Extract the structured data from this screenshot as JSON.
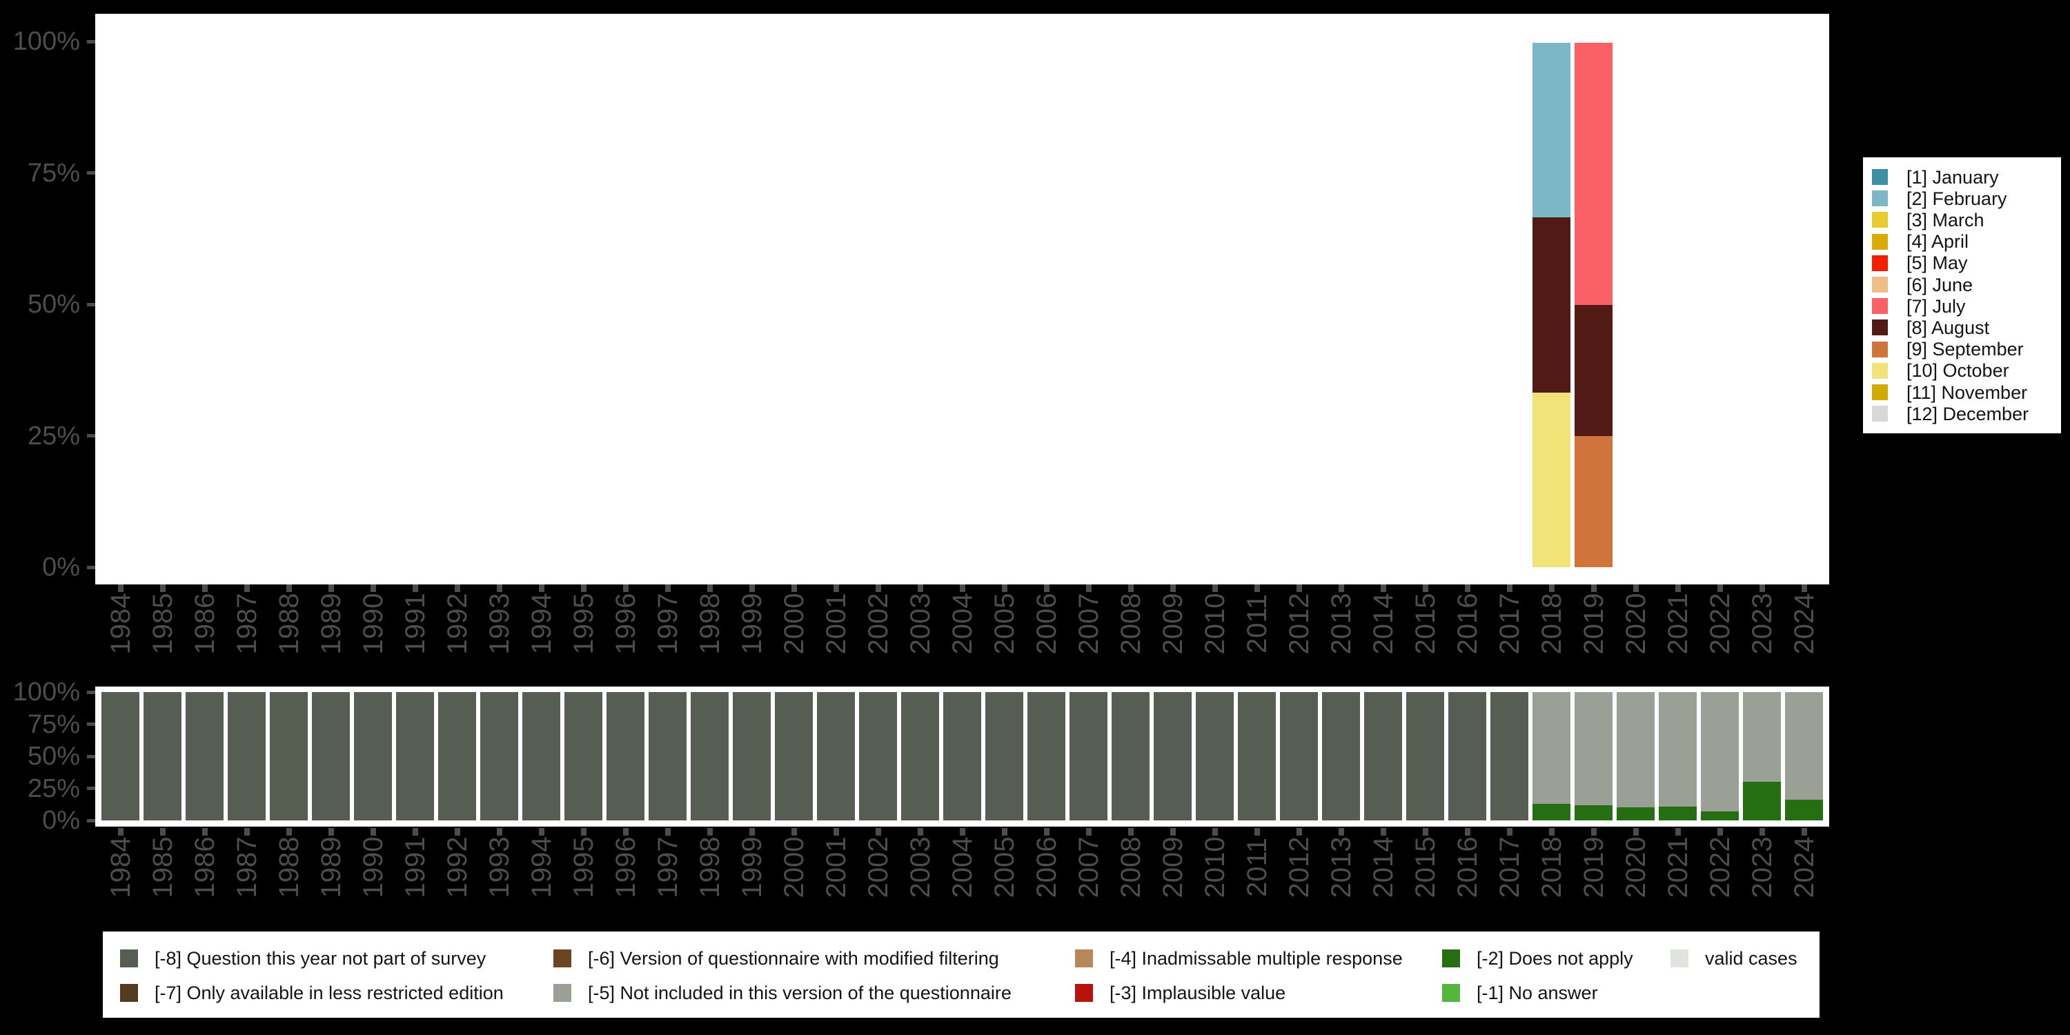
{
  "colors": {
    "background": "#000000",
    "plot_background": "#ffffff",
    "axis_text": "#4d4d4d",
    "tick": "#4d4d4d",
    "legend_text": "#141414"
  },
  "chart_data": [
    {
      "id": "months",
      "type": "bar",
      "stacked": true,
      "title": "",
      "xlabel": "",
      "ylabel": "",
      "ylim": [
        0,
        100
      ],
      "grid": false,
      "legend_position": "right",
      "y_ticks": [
        "100%",
        "75%",
        "50%",
        "25%",
        "0%"
      ],
      "categories": [
        "1984",
        "1985",
        "1986",
        "1987",
        "1988",
        "1989",
        "1990",
        "1991",
        "1992",
        "1993",
        "1994",
        "1995",
        "1996",
        "1997",
        "1998",
        "1999",
        "2000",
        "2001",
        "2002",
        "2003",
        "2004",
        "2005",
        "2006",
        "2007",
        "2008",
        "2009",
        "2010",
        "2011",
        "2012",
        "2013",
        "2014",
        "2015",
        "2016",
        "2017",
        "2018",
        "2019",
        "2020",
        "2021",
        "2022",
        "2023",
        "2024"
      ],
      "legend": [
        {
          "label": "[1] January",
          "color": "#3b90a5"
        },
        {
          "label": "[2] February",
          "color": "#7cb7c7"
        },
        {
          "label": "[3] March",
          "color": "#e8cc2e"
        },
        {
          "label": "[4] April",
          "color": "#daab00"
        },
        {
          "label": "[5] May",
          "color": "#f21f00"
        },
        {
          "label": "[6] June",
          "color": "#f0bd84"
        },
        {
          "label": "[7] July",
          "color": "#fb6067"
        },
        {
          "label": "[8] August",
          "color": "#511a14"
        },
        {
          "label": "[9] September",
          "color": "#d0743b"
        },
        {
          "label": "[10] October",
          "color": "#f2e379"
        },
        {
          "label": "[11] November",
          "color": "#d2ab00"
        },
        {
          "label": "[12] December",
          "color": "#d8d8d8"
        }
      ],
      "bars": {
        "2018": [
          {
            "label": "[10] October",
            "value": 33.3
          },
          {
            "label": "[8] August",
            "value": 33.4
          },
          {
            "label": "[2] February",
            "value": 33.3
          }
        ],
        "2019": [
          {
            "label": "[9] September",
            "value": 25
          },
          {
            "label": "[8] August",
            "value": 25
          },
          {
            "label": "[7] July",
            "value": 50
          }
        ]
      }
    },
    {
      "id": "missing-values",
      "type": "bar",
      "stacked": true,
      "title": "",
      "xlabel": "",
      "ylabel": "",
      "ylim": [
        0,
        100
      ],
      "grid": false,
      "legend_position": "bottom",
      "y_ticks": [
        "100%",
        "75%",
        "50%",
        "25%",
        "0%"
      ],
      "categories": [
        "1984",
        "1985",
        "1986",
        "1987",
        "1988",
        "1989",
        "1990",
        "1991",
        "1992",
        "1993",
        "1994",
        "1995",
        "1996",
        "1997",
        "1998",
        "1999",
        "2000",
        "2001",
        "2002",
        "2003",
        "2004",
        "2005",
        "2006",
        "2007",
        "2008",
        "2009",
        "2010",
        "2011",
        "2012",
        "2013",
        "2014",
        "2015",
        "2016",
        "2017",
        "2018",
        "2019",
        "2020",
        "2021",
        "2022",
        "2023",
        "2024"
      ],
      "legend_columns": [
        [
          {
            "label": "[-8] Question this year not part of survey",
            "color": "#565d53"
          },
          {
            "label": "[-7] Only available in less restricted edition",
            "color": "#533a20"
          }
        ],
        [
          {
            "label": "[-6] Version of questionnaire with modified filtering",
            "color": "#6b4423"
          },
          {
            "label": "[-5] Not included in this version of the questionnaire",
            "color": "#9aa096"
          }
        ],
        [
          {
            "label": "[-4] Inadmissable multiple response",
            "color": "#b5885a"
          },
          {
            "label": "[-3] Implausible value",
            "color": "#b7120b"
          }
        ],
        [
          {
            "label": "[-2] Does not apply",
            "color": "#256e11"
          },
          {
            "label": "[-1] No answer",
            "color": "#55b53c"
          }
        ],
        [
          {
            "label": "valid cases",
            "color": "#dfe4dc"
          }
        ]
      ],
      "default_stack": [
        {
          "label": "[-8] Question this year not part of survey",
          "value": 100
        }
      ],
      "bars": {
        "2018": [
          {
            "label": "[-2] Does not apply",
            "value": 13
          },
          {
            "label": "[-5] Not included in this version of the questionnaire",
            "value": 87
          }
        ],
        "2019": [
          {
            "label": "[-2] Does not apply",
            "value": 12
          },
          {
            "label": "[-5] Not included in this version of the questionnaire",
            "value": 88
          }
        ],
        "2020": [
          {
            "label": "[-2] Does not apply",
            "value": 10
          },
          {
            "label": "[-5] Not included in this version of the questionnaire",
            "value": 90
          }
        ],
        "2021": [
          {
            "label": "[-2] Does not apply",
            "value": 11
          },
          {
            "label": "[-5] Not included in this version of the questionnaire",
            "value": 89
          }
        ],
        "2022": [
          {
            "label": "[-2] Does not apply",
            "value": 7
          },
          {
            "label": "[-5] Not included in this version of the questionnaire",
            "value": 93
          }
        ],
        "2023": [
          {
            "label": "[-2] Does not apply",
            "value": 30
          },
          {
            "label": "[-5] Not included in this version of the questionnaire",
            "value": 70
          }
        ],
        "2024": [
          {
            "label": "[-2] Does not apply",
            "value": 16
          },
          {
            "label": "[-5] Not included in this version of the questionnaire",
            "value": 84
          }
        ]
      }
    }
  ]
}
